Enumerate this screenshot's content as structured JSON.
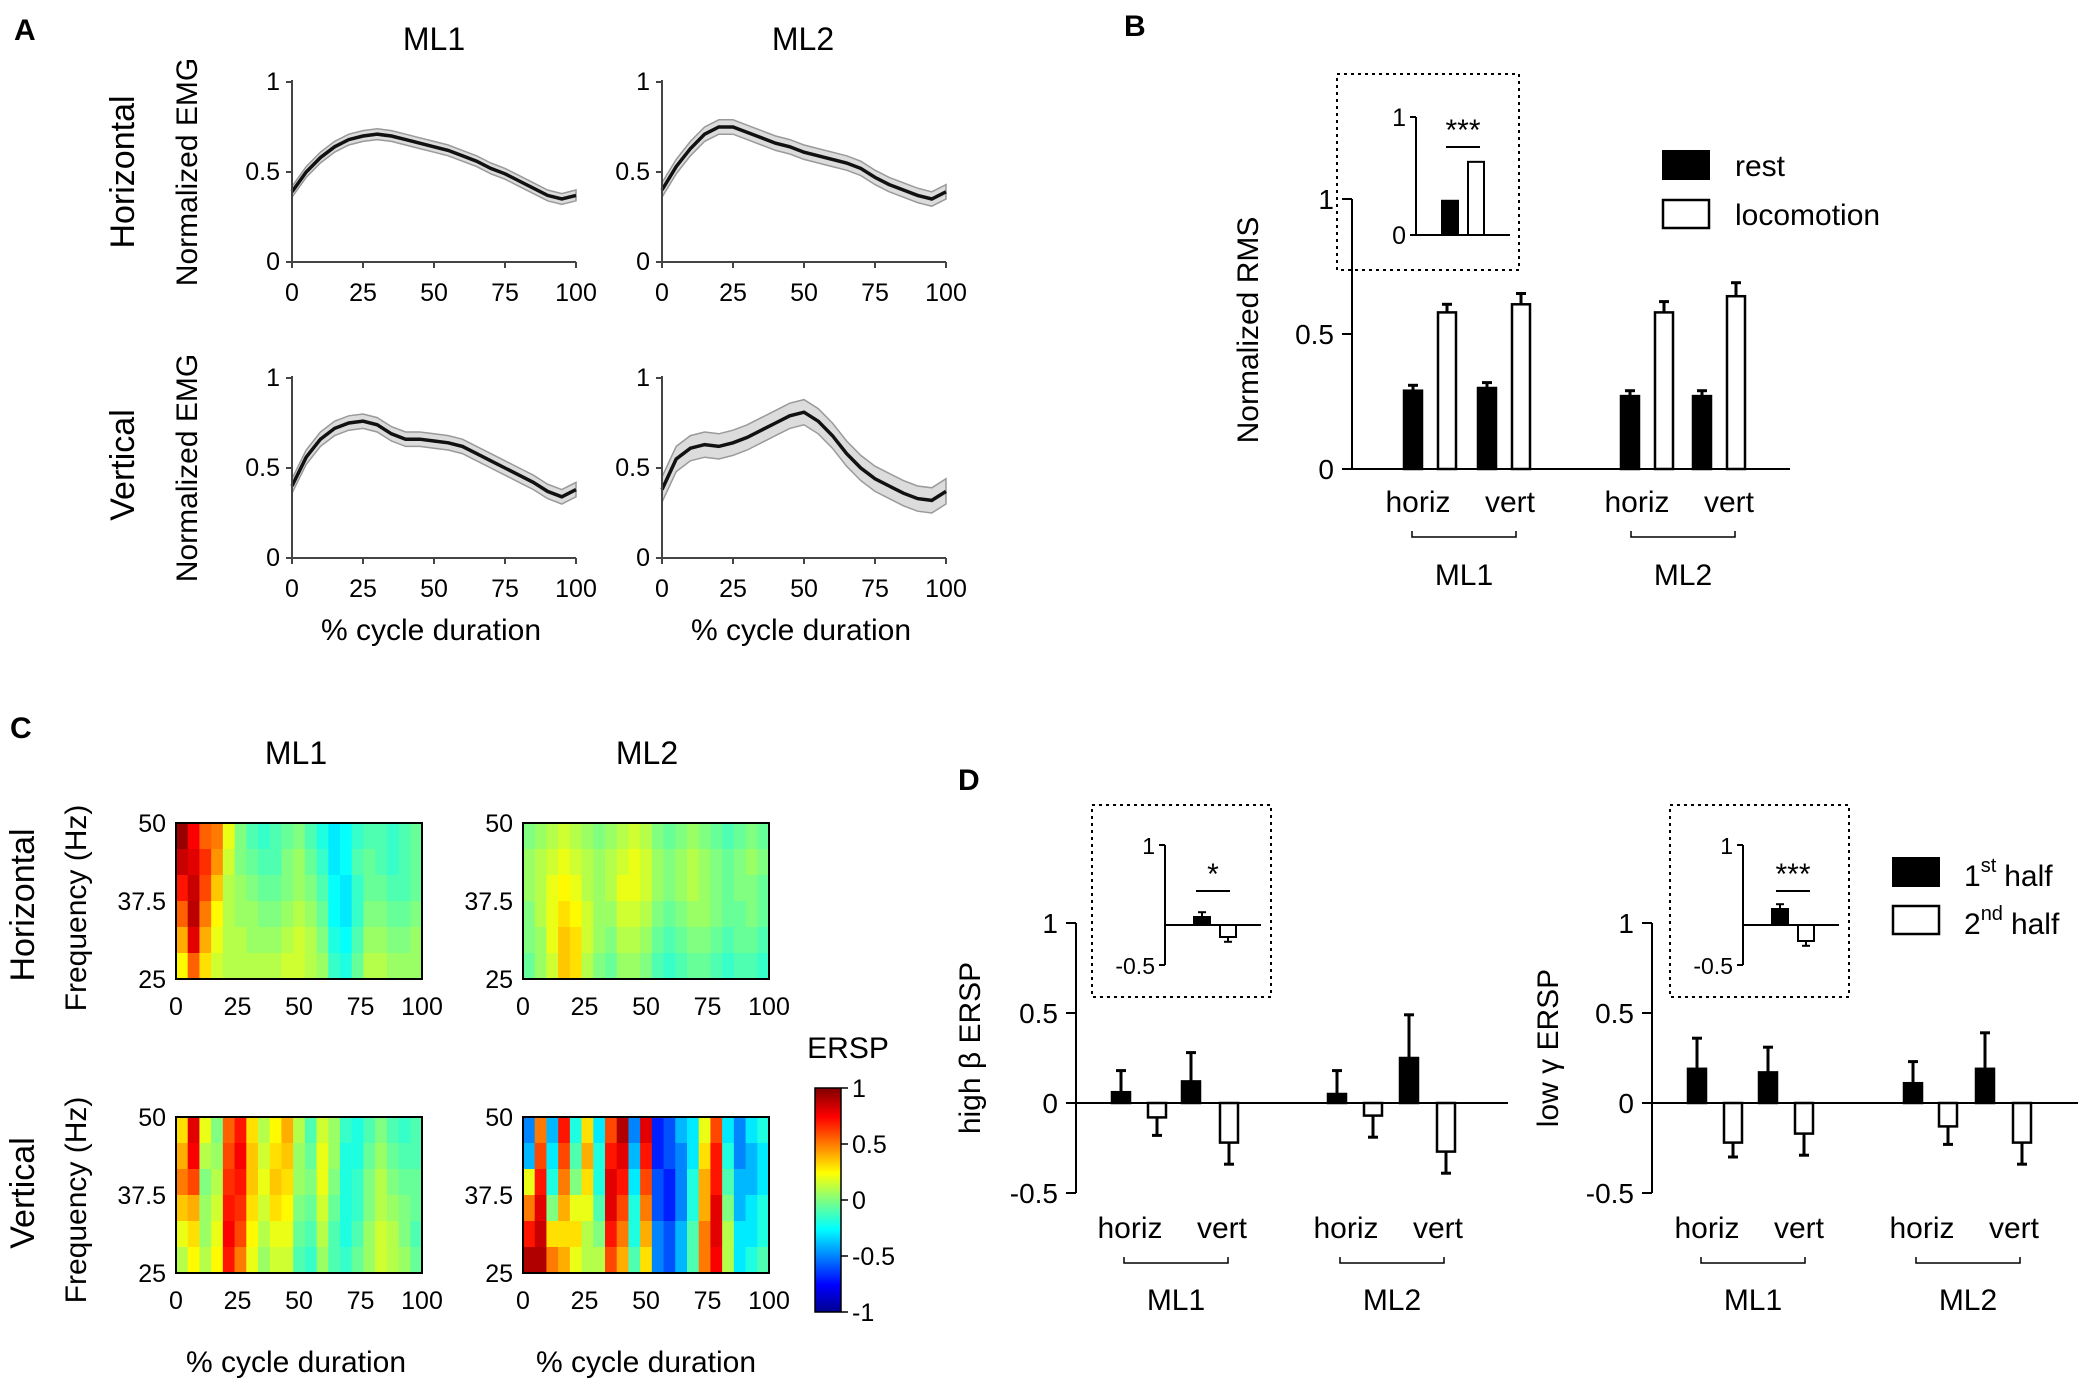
{
  "panels": {
    "A": {
      "label": "A",
      "columns": [
        "ML1",
        "ML2"
      ],
      "rows": [
        "Horizontal",
        "Vertical"
      ],
      "ylabel": "Normalized EMG",
      "xlabel": "% cycle duration",
      "yticks": [
        "0",
        "0.5",
        "1"
      ],
      "xticks": [
        "0",
        "25",
        "50",
        "75",
        "100"
      ]
    },
    "B": {
      "label": "B",
      "ylabel": "Normalized RMS",
      "yticks": [
        "0",
        "0.5",
        "1"
      ],
      "legend": [
        "rest",
        "locomotion"
      ],
      "groups": [
        "ML1",
        "ML2"
      ],
      "conditions": [
        "horiz",
        "vert"
      ],
      "inset": {
        "yticks": [
          "0",
          "1"
        ],
        "sig": "***"
      }
    },
    "C": {
      "label": "C",
      "columns": [
        "ML1",
        "ML2"
      ],
      "rows": [
        "Horizontal",
        "Vertical"
      ],
      "ylabel": "Frequency (Hz)",
      "xlabel": "% cycle duration",
      "yticks": [
        "25",
        "37.5",
        "50"
      ],
      "xticks": [
        "0",
        "25",
        "50",
        "75",
        "100"
      ],
      "colorbar": {
        "title": "ERSP",
        "ticks": [
          "-1",
          "-0.5",
          "0",
          "0.5",
          "1"
        ]
      }
    },
    "D": {
      "label": "D",
      "legend": {
        "first": "1st half",
        "first_num": "1",
        "first_sup": "st",
        "first_word": "half",
        "second": "2nd half",
        "second_num": "2",
        "second_sup": "nd",
        "second_word": "half"
      },
      "left": {
        "ylabel": "high β ERSP",
        "inset_sig": "*"
      },
      "right": {
        "ylabel": "low γ ERSP",
        "inset_sig": "***"
      },
      "yticks": [
        "-0.5",
        "0",
        "0.5",
        "1"
      ],
      "inset_yticks": [
        "-0.5",
        "1"
      ],
      "groups": [
        "ML1",
        "ML2"
      ],
      "conditions": [
        "horiz",
        "vert"
      ]
    }
  },
  "chart_data": [
    {
      "type": "line",
      "id": "A-ML1-horizontal",
      "title": "ML1 Horizontal",
      "xlabel": "% cycle duration",
      "ylabel": "Normalized EMG",
      "xlim": [
        0,
        100
      ],
      "ylim": [
        0,
        1
      ],
      "x": [
        0,
        5,
        10,
        15,
        20,
        25,
        30,
        35,
        40,
        45,
        50,
        55,
        60,
        65,
        70,
        75,
        80,
        85,
        90,
        95,
        100
      ],
      "y": [
        0.39,
        0.5,
        0.58,
        0.64,
        0.68,
        0.7,
        0.71,
        0.7,
        0.68,
        0.66,
        0.64,
        0.62,
        0.59,
        0.56,
        0.52,
        0.49,
        0.45,
        0.41,
        0.37,
        0.35,
        0.37
      ],
      "band": 0.03
    },
    {
      "type": "line",
      "id": "A-ML2-horizontal",
      "title": "ML2 Horizontal",
      "xlabel": "% cycle duration",
      "ylabel": "Normalized EMG",
      "xlim": [
        0,
        100
      ],
      "ylim": [
        0,
        1
      ],
      "x": [
        0,
        5,
        10,
        15,
        20,
        25,
        30,
        35,
        40,
        45,
        50,
        55,
        60,
        65,
        70,
        75,
        80,
        85,
        90,
        95,
        100
      ],
      "y": [
        0.4,
        0.53,
        0.63,
        0.71,
        0.75,
        0.75,
        0.72,
        0.69,
        0.66,
        0.64,
        0.61,
        0.59,
        0.57,
        0.55,
        0.52,
        0.47,
        0.43,
        0.4,
        0.37,
        0.35,
        0.39
      ],
      "band": 0.04
    },
    {
      "type": "line",
      "id": "A-ML1-vertical",
      "title": "ML1 Vertical",
      "xlabel": "% cycle duration",
      "ylabel": "Normalized EMG",
      "xlim": [
        0,
        100
      ],
      "ylim": [
        0,
        1
      ],
      "x": [
        0,
        5,
        10,
        15,
        20,
        25,
        30,
        35,
        40,
        45,
        50,
        55,
        60,
        65,
        70,
        75,
        80,
        85,
        90,
        95,
        100
      ],
      "y": [
        0.4,
        0.56,
        0.66,
        0.72,
        0.75,
        0.76,
        0.74,
        0.69,
        0.66,
        0.66,
        0.65,
        0.64,
        0.62,
        0.58,
        0.54,
        0.5,
        0.46,
        0.42,
        0.37,
        0.34,
        0.38
      ],
      "band": 0.04
    },
    {
      "type": "line",
      "id": "A-ML2-vertical",
      "title": "ML2 Vertical",
      "xlabel": "% cycle duration",
      "ylabel": "Normalized EMG",
      "xlim": [
        0,
        100
      ],
      "ylim": [
        0,
        1
      ],
      "x": [
        0,
        5,
        10,
        15,
        20,
        25,
        30,
        35,
        40,
        45,
        50,
        55,
        60,
        65,
        70,
        75,
        80,
        85,
        90,
        95,
        100
      ],
      "y": [
        0.38,
        0.55,
        0.61,
        0.63,
        0.62,
        0.64,
        0.67,
        0.71,
        0.75,
        0.79,
        0.81,
        0.76,
        0.68,
        0.58,
        0.5,
        0.44,
        0.4,
        0.36,
        0.33,
        0.32,
        0.37
      ],
      "band": 0.07
    },
    {
      "type": "bar",
      "id": "B-rms",
      "ylabel": "Normalized RMS",
      "ylim": [
        0,
        1
      ],
      "categories": [
        "ML1 horiz",
        "ML1 vert",
        "ML2 horiz",
        "ML2 vert"
      ],
      "series": [
        {
          "name": "rest",
          "values": [
            0.29,
            0.3,
            0.27,
            0.27
          ],
          "errors": [
            0.02,
            0.02,
            0.02,
            0.02
          ]
        },
        {
          "name": "locomotion",
          "values": [
            0.58,
            0.61,
            0.58,
            0.64
          ],
          "errors": [
            0.03,
            0.04,
            0.04,
            0.05
          ]
        }
      ]
    },
    {
      "type": "bar",
      "id": "B-inset",
      "ylim": [
        0,
        1
      ],
      "categories": [
        "rest",
        "locomotion"
      ],
      "values": [
        0.29,
        0.62
      ],
      "annotation": "***"
    },
    {
      "type": "heatmap",
      "id": "C-ML1-horizontal",
      "xlabel": "% cycle duration",
      "ylabel": "Frequency (Hz)",
      "xlim": [
        0,
        100
      ],
      "ylim": [
        25,
        50
      ],
      "zlim": [
        -1,
        1
      ],
      "xcolumns": [
        0,
        5,
        10,
        15,
        20,
        25,
        30,
        35,
        40,
        45,
        50,
        55,
        60,
        65,
        70,
        75,
        80,
        85,
        90,
        95,
        100
      ],
      "rows_high_to_low": [
        [
          0.95,
          0.75,
          0.55,
          0.5,
          0.2,
          0.0,
          -0.1,
          -0.15,
          -0.1,
          -0.05,
          0.0,
          -0.1,
          -0.2,
          -0.3,
          -0.25,
          -0.15,
          -0.1,
          -0.1,
          -0.15,
          -0.1,
          -0.05
        ],
        [
          0.85,
          0.8,
          0.65,
          0.45,
          0.15,
          0.0,
          -0.05,
          -0.1,
          -0.1,
          0.0,
          0.05,
          -0.05,
          -0.15,
          -0.3,
          -0.25,
          -0.1,
          -0.05,
          -0.1,
          -0.15,
          -0.1,
          -0.05
        ],
        [
          0.7,
          0.85,
          0.6,
          0.35,
          0.1,
          0.05,
          0.0,
          -0.05,
          -0.05,
          0.0,
          0.05,
          0.0,
          -0.1,
          -0.25,
          -0.3,
          -0.15,
          -0.05,
          -0.05,
          -0.1,
          -0.1,
          -0.05
        ],
        [
          0.55,
          0.88,
          0.5,
          0.25,
          0.1,
          0.05,
          0.05,
          0.0,
          0.0,
          0.05,
          0.1,
          0.05,
          -0.05,
          -0.25,
          -0.3,
          -0.15,
          0.0,
          0.0,
          -0.05,
          -0.05,
          0.0
        ],
        [
          0.4,
          0.8,
          0.4,
          0.2,
          0.1,
          0.1,
          0.05,
          0.05,
          0.05,
          0.1,
          0.15,
          0.1,
          0.0,
          -0.2,
          -0.25,
          -0.1,
          0.05,
          0.05,
          0.0,
          0.0,
          0.05
        ],
        [
          0.25,
          0.55,
          0.3,
          0.15,
          0.1,
          0.1,
          0.1,
          0.1,
          0.1,
          0.15,
          0.15,
          0.1,
          0.05,
          -0.15,
          -0.2,
          -0.05,
          0.1,
          0.1,
          0.05,
          0.05,
          0.05
        ]
      ]
    },
    {
      "type": "heatmap",
      "id": "C-ML2-horizontal",
      "xlabel": "% cycle duration",
      "ylabel": "Frequency (Hz)",
      "xlim": [
        0,
        100
      ],
      "ylim": [
        25,
        50
      ],
      "zlim": [
        -1,
        1
      ],
      "xcolumns": [
        0,
        5,
        10,
        15,
        20,
        25,
        30,
        35,
        40,
        45,
        50,
        55,
        60,
        65,
        70,
        75,
        80,
        85,
        90,
        95,
        100
      ],
      "rows_high_to_low": [
        [
          0.0,
          0.05,
          0.1,
          0.15,
          0.1,
          0.05,
          0.0,
          0.05,
          0.1,
          0.15,
          0.1,
          0.0,
          -0.05,
          0.0,
          0.05,
          0.0,
          -0.05,
          -0.1,
          -0.05,
          0.0,
          -0.05
        ],
        [
          0.05,
          0.1,
          0.15,
          0.2,
          0.15,
          0.1,
          0.05,
          0.1,
          0.15,
          0.2,
          0.15,
          0.05,
          0.0,
          0.05,
          0.1,
          0.05,
          0.0,
          -0.05,
          0.0,
          0.05,
          0.0
        ],
        [
          0.05,
          0.1,
          0.2,
          0.25,
          0.2,
          0.1,
          0.05,
          0.1,
          0.2,
          0.2,
          0.15,
          0.05,
          0.0,
          0.05,
          0.1,
          0.05,
          0.0,
          -0.05,
          0.0,
          0.0,
          -0.05
        ],
        [
          0.0,
          0.1,
          0.2,
          0.3,
          0.25,
          0.15,
          0.05,
          0.05,
          0.15,
          0.15,
          0.1,
          0.0,
          -0.05,
          0.0,
          0.05,
          0.05,
          0.0,
          -0.05,
          -0.05,
          0.0,
          -0.05
        ],
        [
          0.0,
          0.05,
          0.2,
          0.35,
          0.3,
          0.15,
          0.05,
          0.0,
          0.1,
          0.1,
          0.05,
          -0.05,
          -0.1,
          -0.05,
          0.0,
          0.0,
          -0.05,
          -0.1,
          -0.05,
          -0.05,
          -0.1
        ],
        [
          -0.05,
          0.05,
          0.15,
          0.35,
          0.3,
          0.1,
          0.0,
          -0.05,
          0.05,
          0.05,
          0.0,
          -0.1,
          -0.15,
          -0.1,
          -0.05,
          -0.05,
          -0.1,
          -0.15,
          -0.1,
          -0.1,
          -0.15
        ]
      ]
    },
    {
      "type": "heatmap",
      "id": "C-ML1-vertical",
      "xlabel": "% cycle duration",
      "ylabel": "Frequency (Hz)",
      "xlim": [
        0,
        100
      ],
      "ylim": [
        25,
        50
      ],
      "zlim": [
        -1,
        1
      ],
      "xcolumns": [
        0,
        5,
        10,
        15,
        20,
        25,
        30,
        35,
        40,
        45,
        50,
        55,
        60,
        65,
        70,
        75,
        80,
        85,
        90,
        95,
        100
      ],
      "rows_high_to_low": [
        [
          0.3,
          0.8,
          0.2,
          0.0,
          0.55,
          0.7,
          0.3,
          0.1,
          0.25,
          0.4,
          0.1,
          -0.1,
          0.15,
          0.05,
          -0.15,
          -0.2,
          -0.1,
          0.0,
          -0.1,
          -0.15,
          -0.1
        ],
        [
          0.4,
          0.75,
          0.1,
          0.05,
          0.6,
          0.75,
          0.35,
          0.15,
          0.3,
          0.35,
          0.05,
          -0.05,
          0.2,
          0.05,
          -0.2,
          -0.2,
          -0.05,
          0.05,
          -0.05,
          -0.1,
          -0.1
        ],
        [
          0.5,
          0.6,
          0.0,
          0.1,
          0.65,
          0.7,
          0.35,
          0.2,
          0.35,
          0.3,
          0.05,
          0.0,
          0.2,
          0.0,
          -0.2,
          -0.15,
          0.0,
          0.1,
          0.0,
          -0.05,
          -0.05
        ],
        [
          0.35,
          0.4,
          0.05,
          0.15,
          0.7,
          0.65,
          0.3,
          0.15,
          0.3,
          0.25,
          0.0,
          -0.05,
          0.15,
          -0.05,
          -0.2,
          -0.15,
          0.0,
          0.1,
          0.05,
          0.0,
          -0.05
        ],
        [
          0.2,
          0.3,
          0.05,
          0.2,
          0.75,
          0.6,
          0.25,
          0.1,
          0.2,
          0.2,
          -0.05,
          -0.1,
          0.1,
          -0.1,
          -0.2,
          -0.1,
          0.05,
          0.15,
          0.1,
          0.0,
          -0.1
        ],
        [
          0.1,
          0.25,
          0.1,
          0.25,
          0.7,
          0.5,
          0.2,
          0.05,
          0.15,
          0.15,
          -0.1,
          -0.15,
          0.05,
          -0.1,
          -0.15,
          -0.05,
          0.05,
          0.15,
          0.1,
          0.05,
          -0.05
        ]
      ]
    },
    {
      "type": "heatmap",
      "id": "C-ML2-vertical",
      "xlabel": "% cycle duration",
      "ylabel": "Frequency (Hz)",
      "xlim": [
        0,
        100
      ],
      "ylim": [
        25,
        50
      ],
      "zlim": [
        -1,
        1
      ],
      "xcolumns": [
        0,
        5,
        10,
        15,
        20,
        25,
        30,
        35,
        40,
        45,
        50,
        55,
        60,
        65,
        70,
        75,
        80,
        85,
        90,
        95,
        100
      ],
      "rows_high_to_low": [
        [
          -0.5,
          0.5,
          -0.4,
          0.7,
          -0.2,
          0.3,
          -0.3,
          0.6,
          0.9,
          -0.5,
          0.8,
          -0.7,
          -0.6,
          -0.4,
          -0.3,
          0.2,
          0.6,
          -0.3,
          -0.5,
          -0.3,
          -0.2
        ],
        [
          -0.4,
          0.6,
          -0.3,
          0.6,
          -0.1,
          0.4,
          -0.2,
          0.7,
          0.8,
          -0.4,
          0.7,
          -0.7,
          -0.6,
          -0.5,
          -0.3,
          0.3,
          0.7,
          -0.2,
          -0.5,
          -0.4,
          -0.3
        ],
        [
          0.2,
          0.7,
          -0.2,
          0.5,
          0.0,
          0.3,
          -0.2,
          0.8,
          0.7,
          -0.3,
          0.6,
          -0.6,
          -0.7,
          -0.5,
          -0.2,
          0.4,
          0.7,
          -0.1,
          -0.4,
          -0.4,
          -0.3
        ],
        [
          0.5,
          0.8,
          0.0,
          0.4,
          0.2,
          0.2,
          -0.1,
          0.8,
          0.6,
          -0.2,
          0.5,
          -0.6,
          -0.7,
          -0.5,
          -0.2,
          0.4,
          0.8,
          0.0,
          -0.4,
          -0.3,
          -0.2
        ],
        [
          0.7,
          0.85,
          0.3,
          0.3,
          0.3,
          0.1,
          0.0,
          0.7,
          0.5,
          -0.2,
          0.4,
          -0.5,
          -0.6,
          -0.4,
          -0.1,
          0.5,
          0.8,
          0.1,
          -0.3,
          -0.3,
          -0.2
        ],
        [
          0.9,
          0.9,
          0.5,
          0.4,
          0.2,
          0.1,
          0.1,
          0.6,
          0.4,
          -0.1,
          0.3,
          -0.5,
          -0.6,
          -0.4,
          -0.1,
          0.5,
          0.75,
          0.1,
          -0.3,
          -0.2,
          -0.1
        ]
      ]
    },
    {
      "type": "bar",
      "id": "D-high-beta",
      "ylabel": "high β ERSP",
      "ylim": [
        -0.5,
        1
      ],
      "categories": [
        "ML1 horiz",
        "ML1 vert",
        "ML2 horiz",
        "ML2 vert"
      ],
      "series": [
        {
          "name": "1st half",
          "values": [
            0.06,
            0.12,
            0.05,
            0.25
          ],
          "errors": [
            0.12,
            0.16,
            0.13,
            0.24
          ]
        },
        {
          "name": "2nd half",
          "values": [
            -0.08,
            -0.22,
            -0.07,
            -0.27
          ],
          "errors": [
            0.1,
            0.12,
            0.12,
            0.12
          ]
        }
      ]
    },
    {
      "type": "bar",
      "id": "D-high-beta-inset",
      "ylim": [
        -0.5,
        1
      ],
      "categories": [
        "1st half",
        "2nd half"
      ],
      "values": [
        0.1,
        -0.15
      ],
      "errors": [
        0.06,
        0.06
      ],
      "annotation": "*"
    },
    {
      "type": "bar",
      "id": "D-low-gamma",
      "ylabel": "low γ ERSP",
      "ylim": [
        -0.5,
        1
      ],
      "categories": [
        "ML1 horiz",
        "ML1 vert",
        "ML2 horiz",
        "ML2 vert"
      ],
      "series": [
        {
          "name": "1st half",
          "values": [
            0.19,
            0.17,
            0.11,
            0.19
          ],
          "errors": [
            0.17,
            0.14,
            0.12,
            0.2
          ]
        },
        {
          "name": "2nd half",
          "values": [
            -0.22,
            -0.17,
            -0.13,
            -0.22
          ],
          "errors": [
            0.08,
            0.12,
            0.1,
            0.12
          ]
        }
      ]
    },
    {
      "type": "bar",
      "id": "D-low-gamma-inset",
      "ylim": [
        -0.5,
        1
      ],
      "categories": [
        "1st half",
        "2nd half"
      ],
      "values": [
        0.2,
        -0.2
      ],
      "errors": [
        0.06,
        0.06
      ],
      "annotation": "***"
    }
  ]
}
